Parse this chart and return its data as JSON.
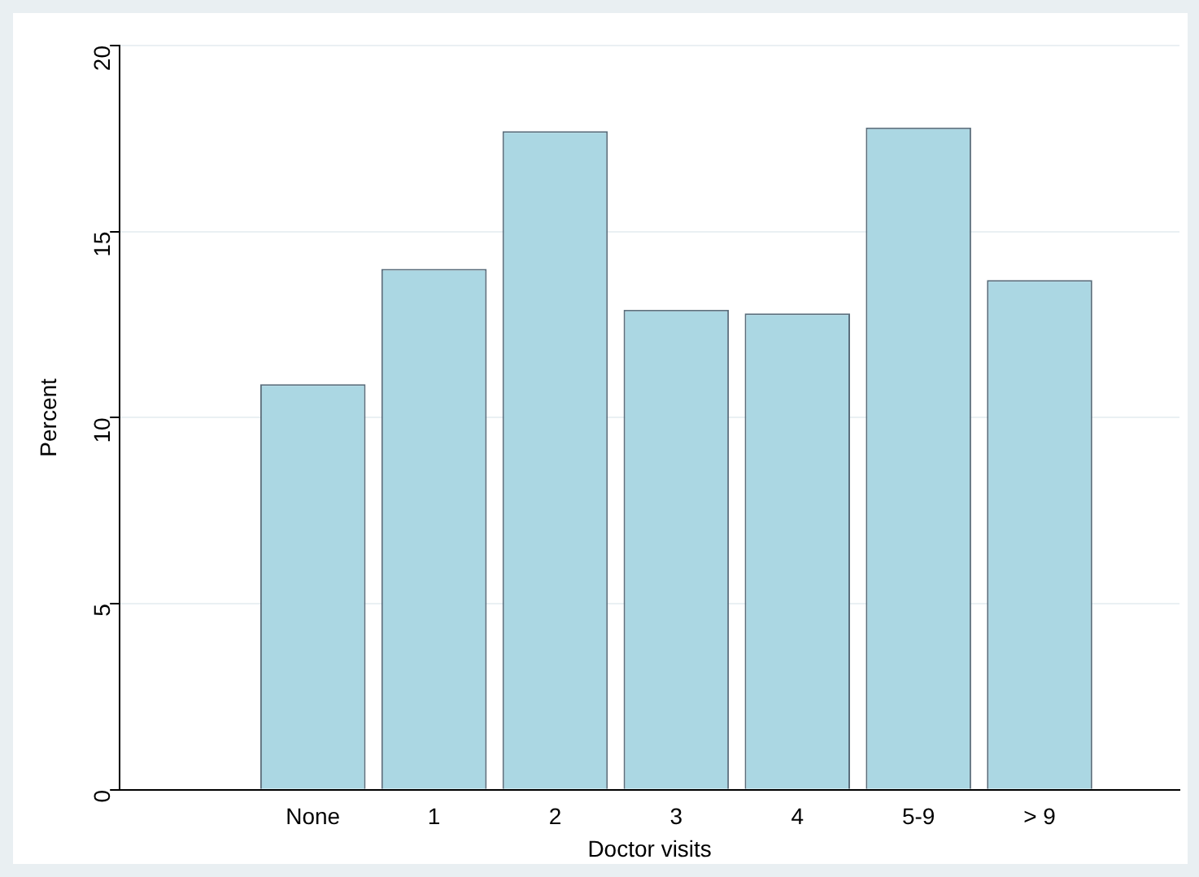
{
  "chart_data": {
    "type": "bar",
    "xlabel": "Doctor visits",
    "ylabel": "Percent",
    "categories": [
      "None",
      "1",
      "2",
      "3",
      "4",
      "5-9",
      "> 9"
    ],
    "values": [
      10.9,
      14.0,
      17.7,
      12.9,
      12.8,
      17.8,
      13.7
    ],
    "color": "#abd7e3",
    "ylim": [
      0,
      20
    ],
    "yticks": [
      0,
      5,
      10,
      15,
      20
    ],
    "grid": "y",
    "legend": false
  }
}
